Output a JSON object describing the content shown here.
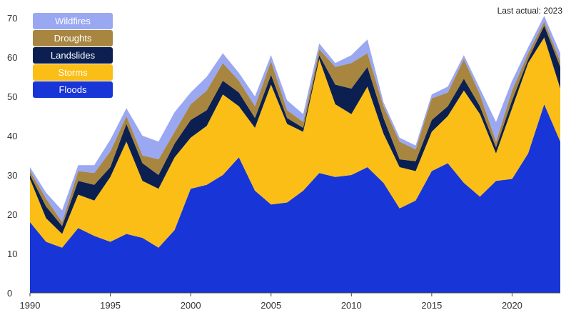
{
  "chart_data": {
    "type": "area",
    "stacked": true,
    "note": "Last actual: 2023",
    "x": [
      1990,
      1991,
      1992,
      1993,
      1994,
      1995,
      1996,
      1997,
      1998,
      1999,
      2000,
      2001,
      2002,
      2003,
      2004,
      2005,
      2006,
      2007,
      2008,
      2009,
      2010,
      2011,
      2012,
      2013,
      2014,
      2015,
      2016,
      2017,
      2018,
      2019,
      2020,
      2021,
      2022,
      2023
    ],
    "x_ticks": [
      1990,
      1995,
      2000,
      2005,
      2010,
      2015,
      2020
    ],
    "y_ticks": [
      0,
      10,
      20,
      30,
      40,
      50,
      60,
      70
    ],
    "xlim": [
      1990,
      2023
    ],
    "ylim": [
      0,
      70
    ],
    "grid": false,
    "legend_position": "top-left",
    "series": [
      {
        "name": "Floods",
        "color": "#1835d8",
        "values": [
          18,
          13,
          11.5,
          16.5,
          14.5,
          13,
          15,
          14,
          11.5,
          16,
          26.5,
          27.5,
          30,
          34.5,
          26,
          22.5,
          23,
          26,
          30.5,
          29.5,
          30,
          32,
          28,
          21.5,
          23.5,
          31,
          33,
          28,
          24.5,
          28.5,
          29,
          35.5,
          48,
          38.5
        ]
      },
      {
        "name": "Storms",
        "color": "#fbbe16",
        "values": [
          11,
          6,
          3.5,
          8.5,
          9,
          16.5,
          23.5,
          14.5,
          15,
          18.5,
          13,
          15,
          20.5,
          13,
          16,
          30.5,
          20,
          15,
          29,
          18.5,
          15.5,
          20.5,
          12.5,
          10.5,
          7.5,
          10,
          12,
          23.5,
          21,
          7,
          18,
          23,
          17,
          13.5
        ]
      },
      {
        "name": "Landslides",
        "color": "#0b2050",
        "values": [
          1,
          3,
          2,
          3.5,
          4,
          2.5,
          4.5,
          4.5,
          3.5,
          3.5,
          4.5,
          4,
          3.5,
          3.5,
          2.5,
          2.5,
          1.5,
          1,
          1,
          5,
          6.5,
          5,
          4,
          2,
          2.5,
          3,
          2.5,
          3,
          2,
          1.5,
          2,
          1,
          3,
          5.5
        ]
      },
      {
        "name": "Droughts",
        "color": "#a88640",
        "values": [
          1,
          2,
          1,
          2.5,
          3,
          4,
          2,
          2,
          4,
          3,
          4,
          5,
          4.5,
          3,
          3,
          3.5,
          2,
          1.5,
          1.5,
          4.5,
          6.5,
          3.5,
          3,
          4.5,
          3,
          5.5,
          3.5,
          5,
          3,
          1.5,
          2.5,
          1.5,
          1,
          1.5
        ]
      },
      {
        "name": "Wildfires",
        "color": "#9aa8f2",
        "values": [
          1,
          1.5,
          3,
          1.5,
          2,
          3,
          2,
          5,
          4.5,
          5,
          3,
          3.5,
          2.5,
          2,
          2.5,
          1.5,
          2.5,
          2,
          1.5,
          1,
          2,
          3.5,
          1,
          1,
          1,
          1,
          1.5,
          1,
          1.5,
          5,
          2.5,
          1.5,
          1.5,
          2
        ]
      }
    ]
  }
}
